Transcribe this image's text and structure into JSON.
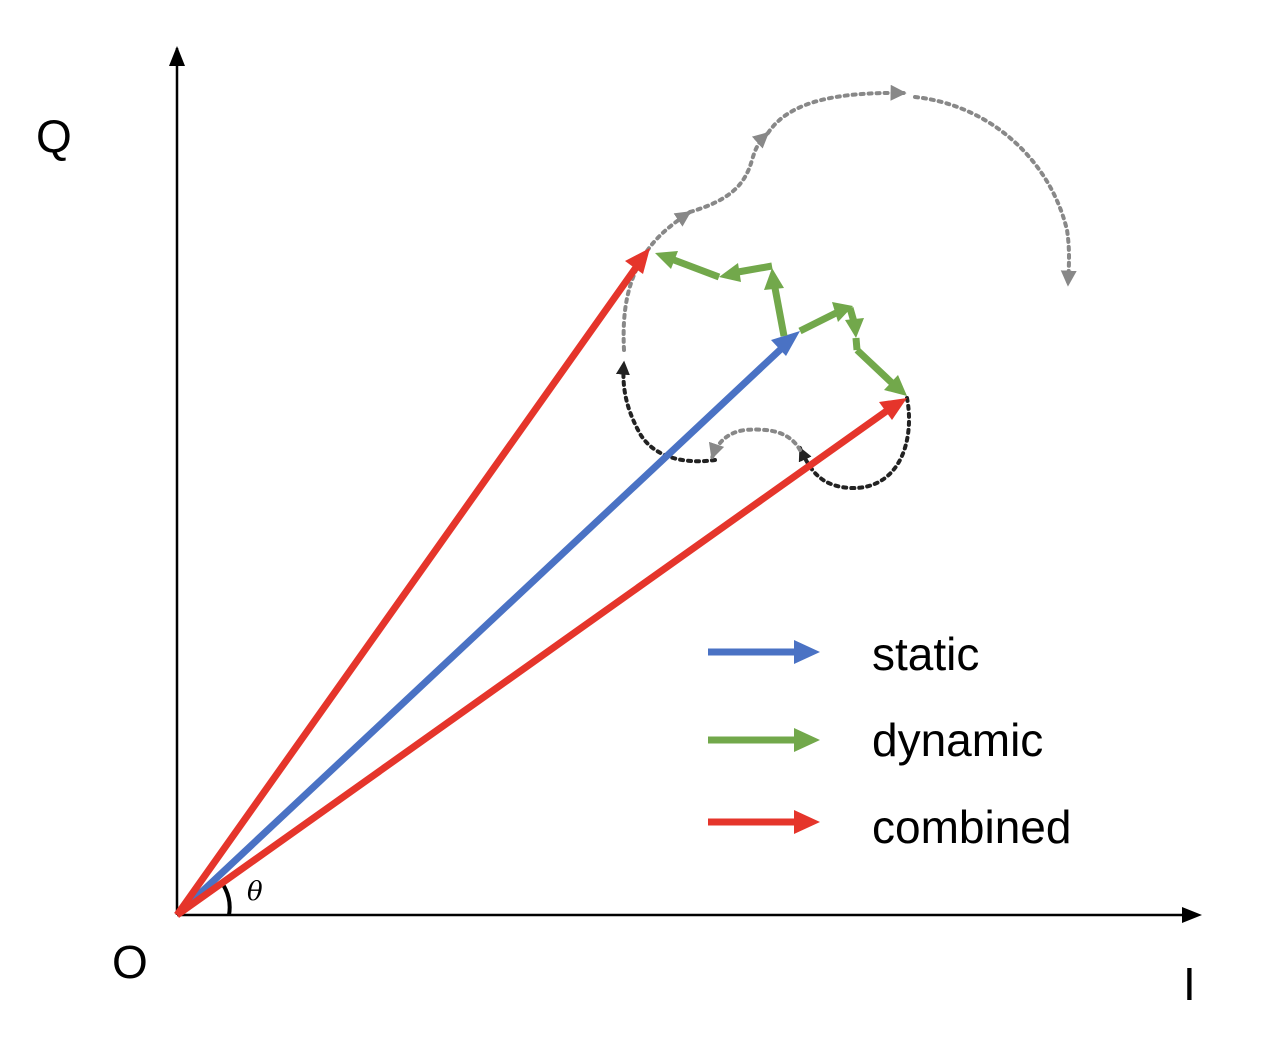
{
  "axes": {
    "y_label": "Q",
    "x_label": "I",
    "origin_label": "O",
    "angle_label": "θ"
  },
  "legend": {
    "items": [
      {
        "key": "static",
        "label": "static",
        "color": "#4a72c4"
      },
      {
        "key": "dynamic",
        "label": "dynamic",
        "color": "#72a84b"
      },
      {
        "key": "combined",
        "label": "combined",
        "color": "#e5352b"
      }
    ]
  },
  "colors": {
    "static": "#4a72c4",
    "dynamic": "#72a84b",
    "combined": "#e5352b",
    "axis": "#000000",
    "trajectory_dark": "#222222",
    "trajectory_grey": "#888888"
  }
}
